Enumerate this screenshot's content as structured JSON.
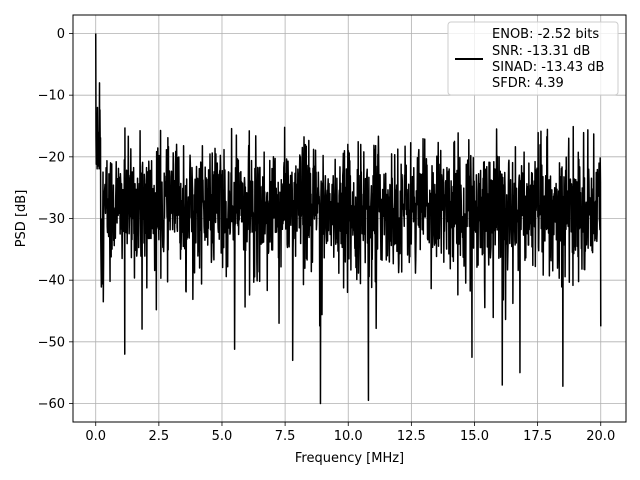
{
  "chart_data": {
    "type": "line",
    "xlabel": "Frequency [MHz]",
    "ylabel": "PSD [dB]",
    "xlim": [
      -0.9,
      21.0
    ],
    "ylim": [
      -63,
      3
    ],
    "x_ticks": [
      0.0,
      2.5,
      5.0,
      7.5,
      10.0,
      12.5,
      15.0,
      17.5,
      20.0
    ],
    "x_tick_labels": [
      "0.0",
      "2.5",
      "5.0",
      "7.5",
      "10.0",
      "12.5",
      "15.0",
      "17.5",
      "20.0"
    ],
    "y_ticks": [
      0,
      -10,
      -20,
      -30,
      -40,
      -50,
      -60
    ],
    "y_tick_labels": [
      "0",
      "−10",
      "−20",
      "−30",
      "−40",
      "−50",
      "−60"
    ],
    "grid": true,
    "legend_position": "top-right",
    "line_color": "#000000",
    "x_start": 0.0,
    "x_end": 20.0,
    "noise_floor_db": -28,
    "peak": {
      "x": 0.0,
      "y": 0.0
    },
    "notable_points": [
      {
        "x": 0.0,
        "y": 0.0
      },
      {
        "x": 0.07,
        "y": -12
      },
      {
        "x": 0.15,
        "y": -8
      },
      {
        "x": 0.3,
        "y": -43.5
      },
      {
        "x": 1.15,
        "y": -52
      },
      {
        "x": 2.4,
        "y": -44.8
      },
      {
        "x": 5.5,
        "y": -51.2
      },
      {
        "x": 7.8,
        "y": -53
      },
      {
        "x": 8.9,
        "y": -60
      },
      {
        "x": 10.8,
        "y": -59.5
      },
      {
        "x": 14.9,
        "y": -52.5
      },
      {
        "x": 16.1,
        "y": -57
      },
      {
        "x": 16.8,
        "y": -55
      },
      {
        "x": 18.5,
        "y": -57.2
      },
      {
        "x": 20.0,
        "y": -47.5
      }
    ],
    "series": [
      {
        "legend_lines": [
          "ENOB: -2.52 bits",
          "SNR: -13.31 dB",
          "SINAD: -13.43 dB",
          "SFDR: 4.39"
        ]
      }
    ]
  }
}
